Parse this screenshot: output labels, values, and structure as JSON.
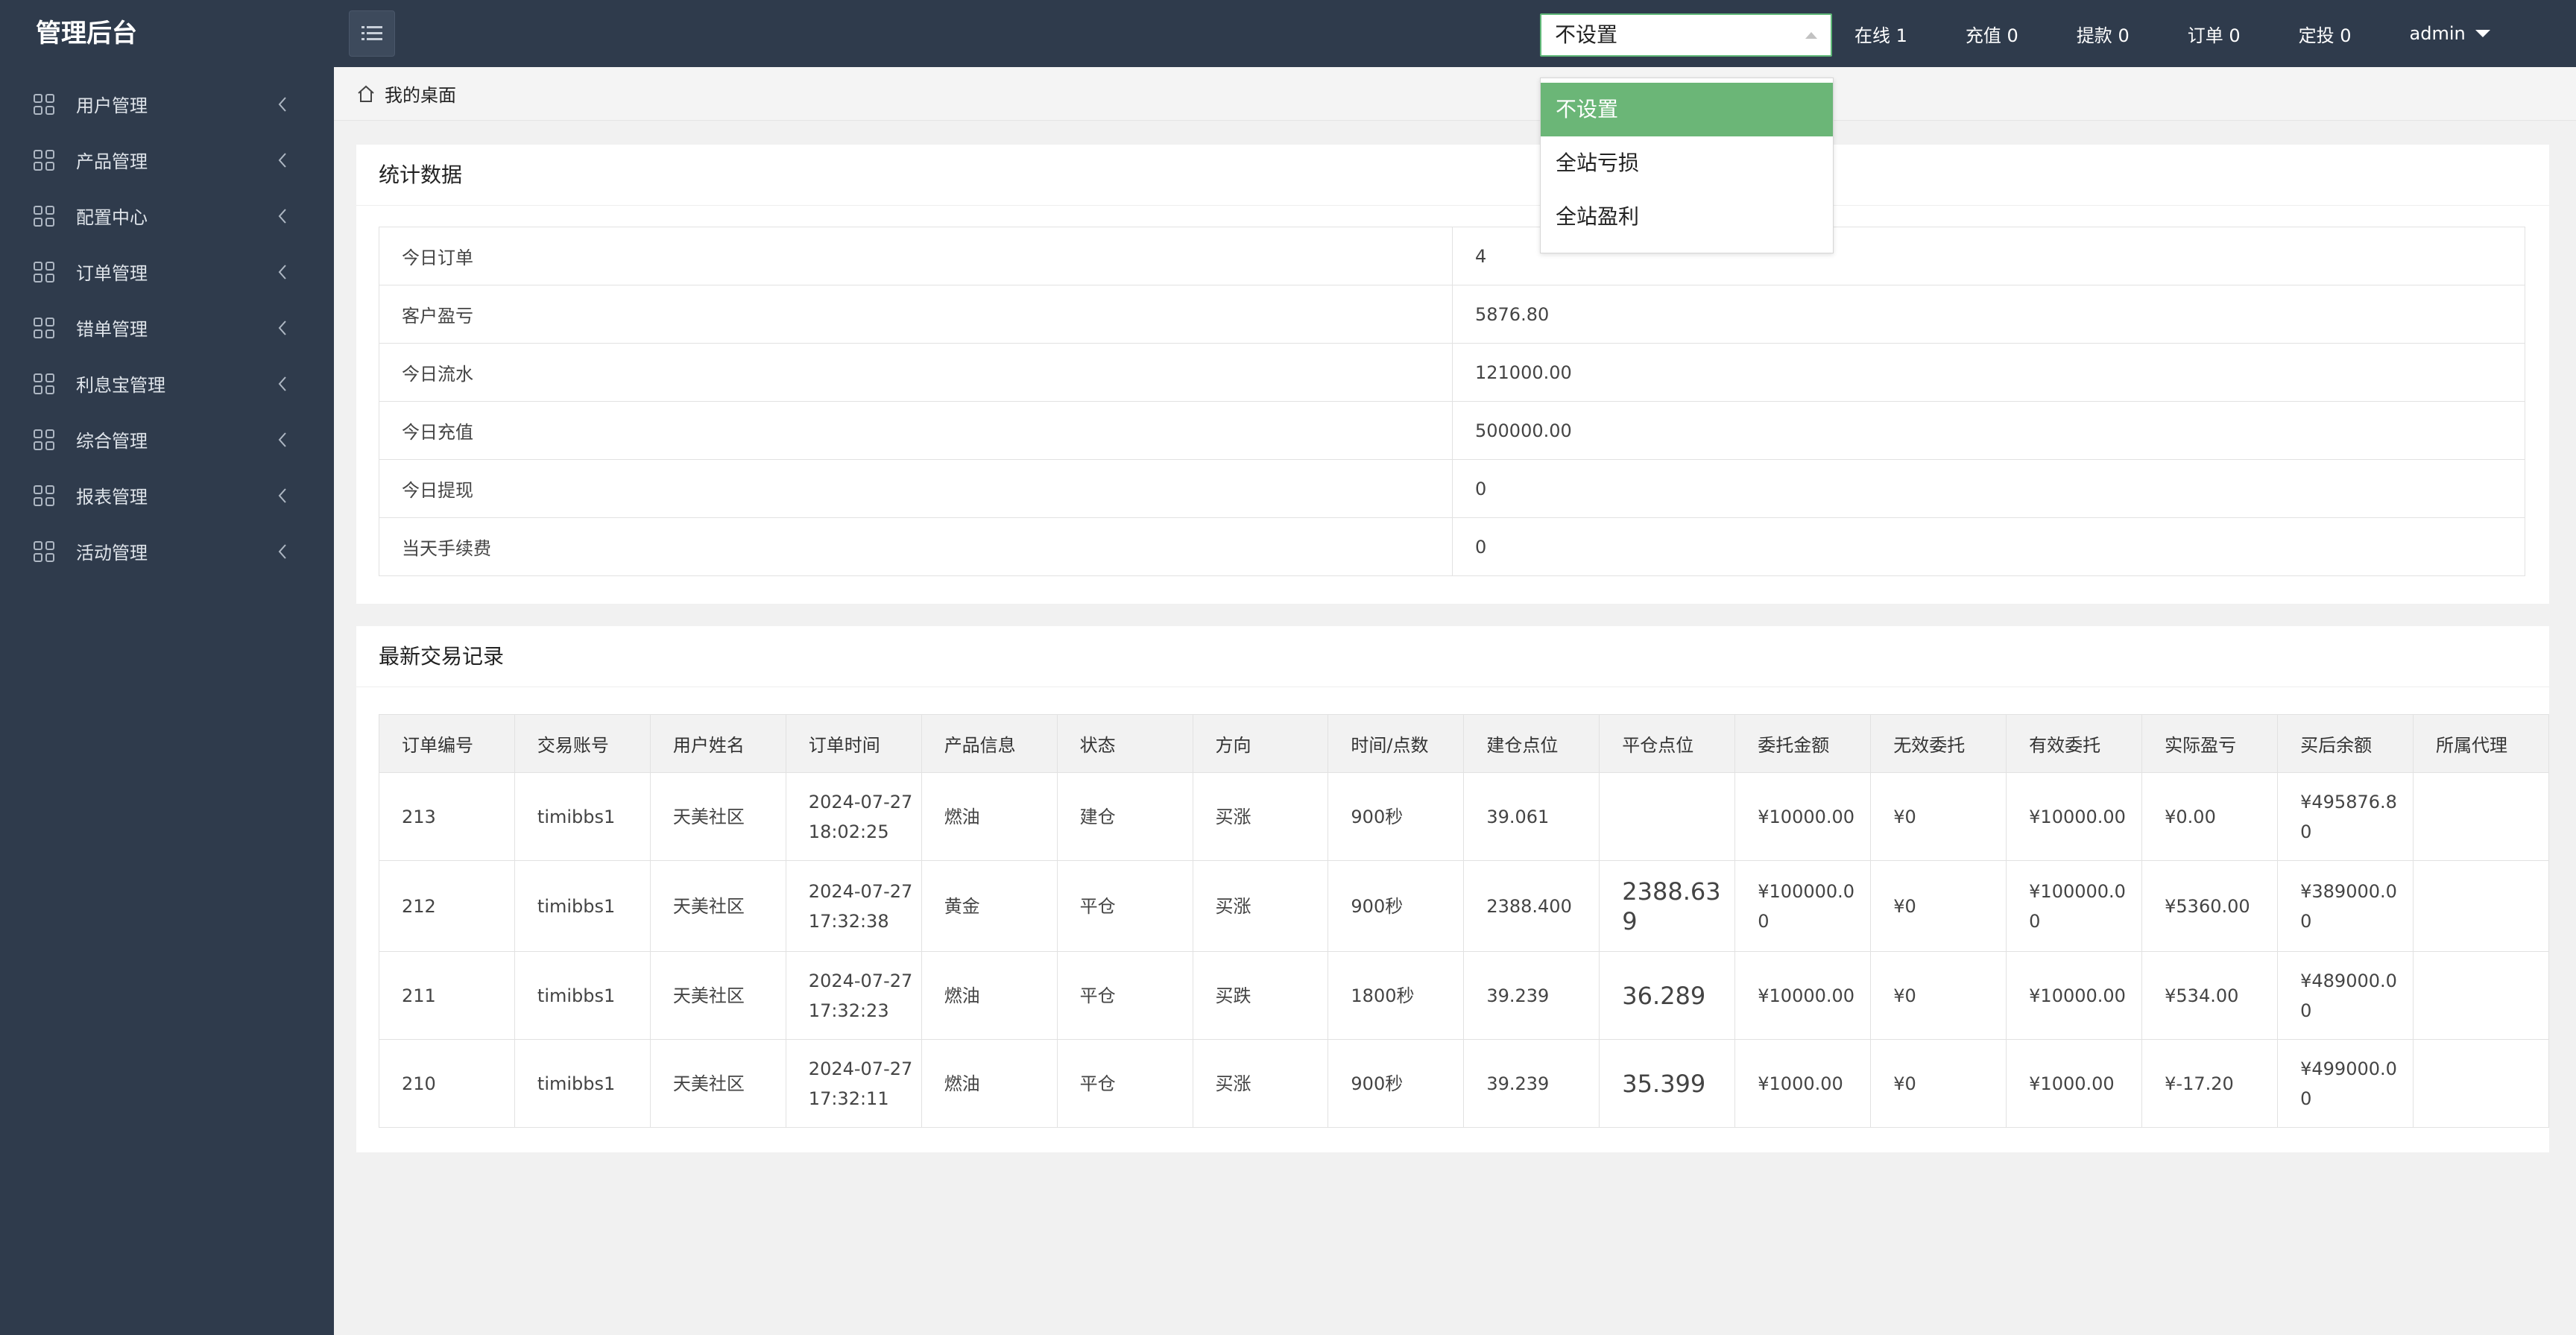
{
  "app": {
    "title": "管理后台"
  },
  "sidebar": {
    "items": [
      {
        "label": "用户管理"
      },
      {
        "label": "产品管理"
      },
      {
        "label": "配置中心"
      },
      {
        "label": "订单管理"
      },
      {
        "label": "错单管理"
      },
      {
        "label": "利息宝管理"
      },
      {
        "label": "综合管理"
      },
      {
        "label": "报表管理"
      },
      {
        "label": "活动管理"
      }
    ]
  },
  "header": {
    "select_value": "不设置",
    "stats": [
      "在线 1",
      "充值 0",
      "提款 0",
      "订单 0",
      "定投 0"
    ],
    "user": "admin"
  },
  "dropdown": {
    "options": [
      "不设置",
      "全站亏损",
      "全站盈利"
    ],
    "selected_color": "#6bb677"
  },
  "breadcrumb": {
    "label": "我的桌面"
  },
  "stats_panel": {
    "title": "统计数据",
    "rows": [
      {
        "label": "今日订单",
        "value": "4"
      },
      {
        "label": "客户盈亏",
        "value": "5876.80"
      },
      {
        "label": "今日流水",
        "value": "121000.00"
      },
      {
        "label": "今日充值",
        "value": "500000.00"
      },
      {
        "label": "今日提现",
        "value": "0"
      },
      {
        "label": "当天手续费",
        "value": "0"
      }
    ]
  },
  "tx_panel": {
    "title": "最新交易记录",
    "headers": [
      "订单编号",
      "交易账号",
      "用户姓名",
      "订单时间",
      "产品信息",
      "状态",
      "方向",
      "时间/点数",
      "建仓点位",
      "平仓点位",
      "委托金额",
      "无效委托",
      "有效委托",
      "实际盈亏",
      "买后余额",
      "所属代理"
    ],
    "rows": [
      {
        "id": "213",
        "account": "timibbs1",
        "name": "天美社区",
        "time": "2024-07-27 18:02:25",
        "product": "燃油",
        "status": "建仓",
        "direction": "买涨",
        "duration": "900秒",
        "open": "39.061",
        "close": "",
        "amount": "¥10000.00",
        "invalid": "¥0",
        "valid": "¥10000.00",
        "pnl": "¥0.00",
        "balance": "¥495876.80",
        "agent": ""
      },
      {
        "id": "212",
        "account": "timibbs1",
        "name": "天美社区",
        "time": "2024-07-27 17:32:38",
        "product": "黄金",
        "status": "平仓",
        "direction": "买涨",
        "duration": "900秒",
        "open": "2388.400",
        "close": "2388.639",
        "amount": "¥100000.00",
        "invalid": "¥0",
        "valid": "¥100000.00",
        "pnl": "¥5360.00",
        "balance": "¥389000.00",
        "agent": ""
      },
      {
        "id": "211",
        "account": "timibbs1",
        "name": "天美社区",
        "time": "2024-07-27 17:32:23",
        "product": "燃油",
        "status": "平仓",
        "direction": "买跌",
        "duration": "1800秒",
        "open": "39.239",
        "close": "36.289",
        "amount": "¥10000.00",
        "invalid": "¥0",
        "valid": "¥10000.00",
        "pnl": "¥534.00",
        "balance": "¥489000.00",
        "agent": ""
      },
      {
        "id": "210",
        "account": "timibbs1",
        "name": "天美社区",
        "time": "2024-07-27 17:32:11",
        "product": "燃油",
        "status": "平仓",
        "direction": "买涨",
        "duration": "900秒",
        "open": "39.239",
        "close": "35.399",
        "amount": "¥1000.00",
        "invalid": "¥0",
        "valid": "¥1000.00",
        "pnl": "¥-17.20",
        "balance": "¥499000.00",
        "agent": ""
      }
    ],
    "close_colors": [
      "",
      "#d93026",
      "#3fae49",
      "#3fae49"
    ]
  }
}
